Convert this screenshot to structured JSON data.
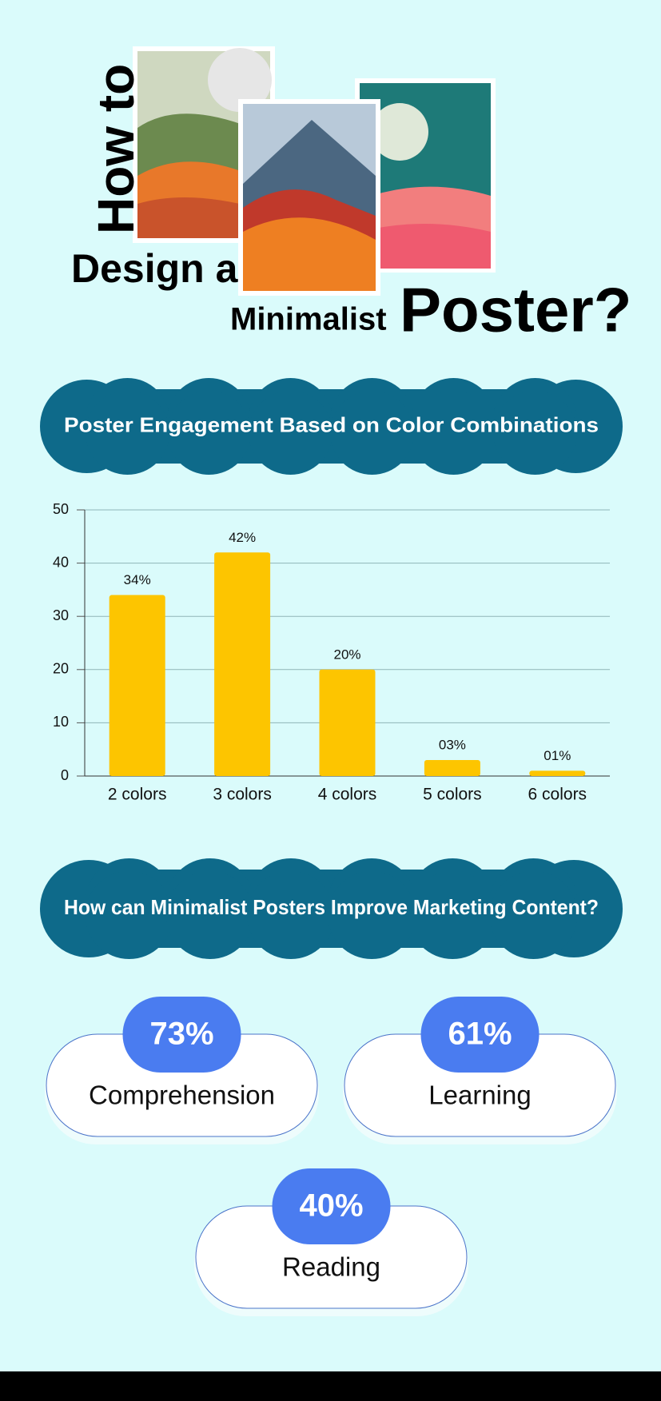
{
  "header": {
    "line1": "How to",
    "line2": "Design a",
    "line3": "Minimalist",
    "line4": "Poster?"
  },
  "chart_data": {
    "type": "bar",
    "title": "Poster Engagement Based on Color Combinations",
    "categories": [
      "2 colors",
      "3 colors",
      "4 colors",
      "5 colors",
      "6 colors"
    ],
    "values": [
      34,
      42,
      20,
      3,
      1
    ],
    "value_labels": [
      "34%",
      "42%",
      "20%",
      "03%",
      "01%"
    ],
    "color": "#fdc500",
    "ylim": [
      0,
      50
    ],
    "yticks": [
      0,
      10,
      20,
      30,
      40,
      50
    ],
    "grid": true
  },
  "benefits": {
    "title": "How can Minimalist Posters Improve Marketing Content?",
    "items": [
      {
        "value": "73%",
        "label": "Comprehension"
      },
      {
        "value": "61%",
        "label": "Learning"
      },
      {
        "value": "40%",
        "label": "Reading"
      }
    ]
  }
}
